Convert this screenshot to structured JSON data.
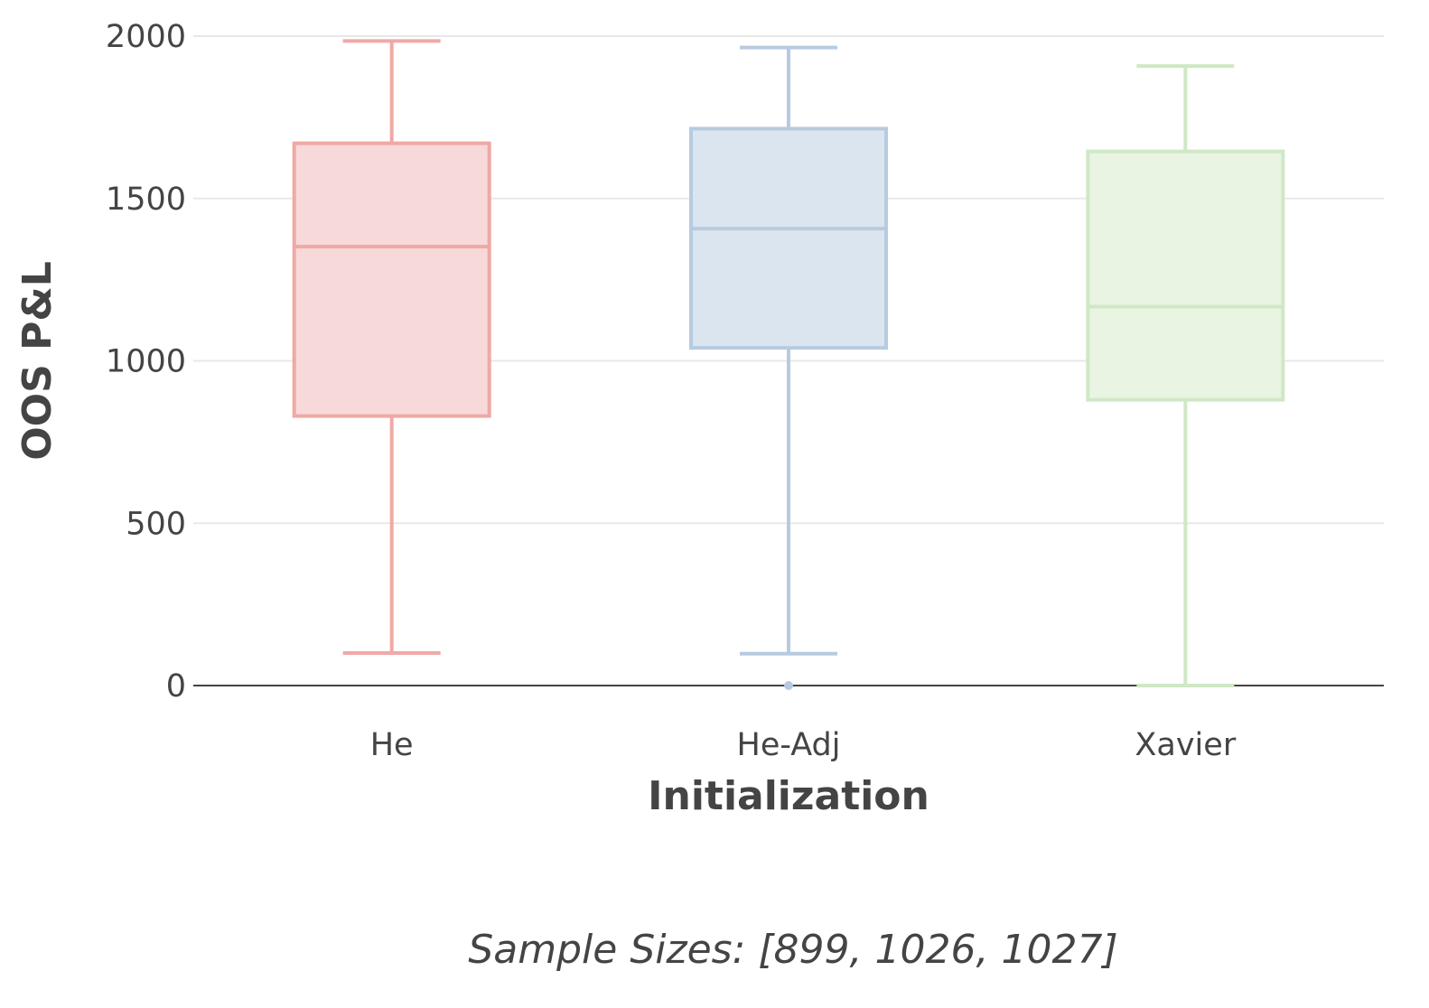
{
  "chart_data": {
    "type": "box",
    "xlabel": "Initialization",
    "ylabel": "OOS P&L",
    "ylim": [
      0,
      2000
    ],
    "yticks": [
      0,
      500,
      1000,
      1500,
      2000
    ],
    "grid": true,
    "annotation": "Sample Sizes: [899, 1026, 1027]",
    "categories": [
      "He",
      "He-Adj",
      "Xavier"
    ],
    "series": [
      {
        "category": "He",
        "color": "#f0a8a6",
        "fill": "#f7d9d9",
        "lower_whisker": 100,
        "q1": 830,
        "median": 1352,
        "q3": 1670,
        "upper_whisker": 1985,
        "outliers": []
      },
      {
        "category": "He-Adj",
        "color": "#b7cbe0",
        "fill": "#dbe5ef",
        "lower_whisker": 98,
        "q1": 1040,
        "median": 1407,
        "q3": 1715,
        "upper_whisker": 1965,
        "outliers": [
          0
        ]
      },
      {
        "category": "Xavier",
        "color": "#cfe8c5",
        "fill": "#e9f4e2",
        "lower_whisker": 0,
        "q1": 880,
        "median": 1167,
        "q3": 1645,
        "upper_whisker": 1908,
        "outliers": []
      }
    ]
  }
}
